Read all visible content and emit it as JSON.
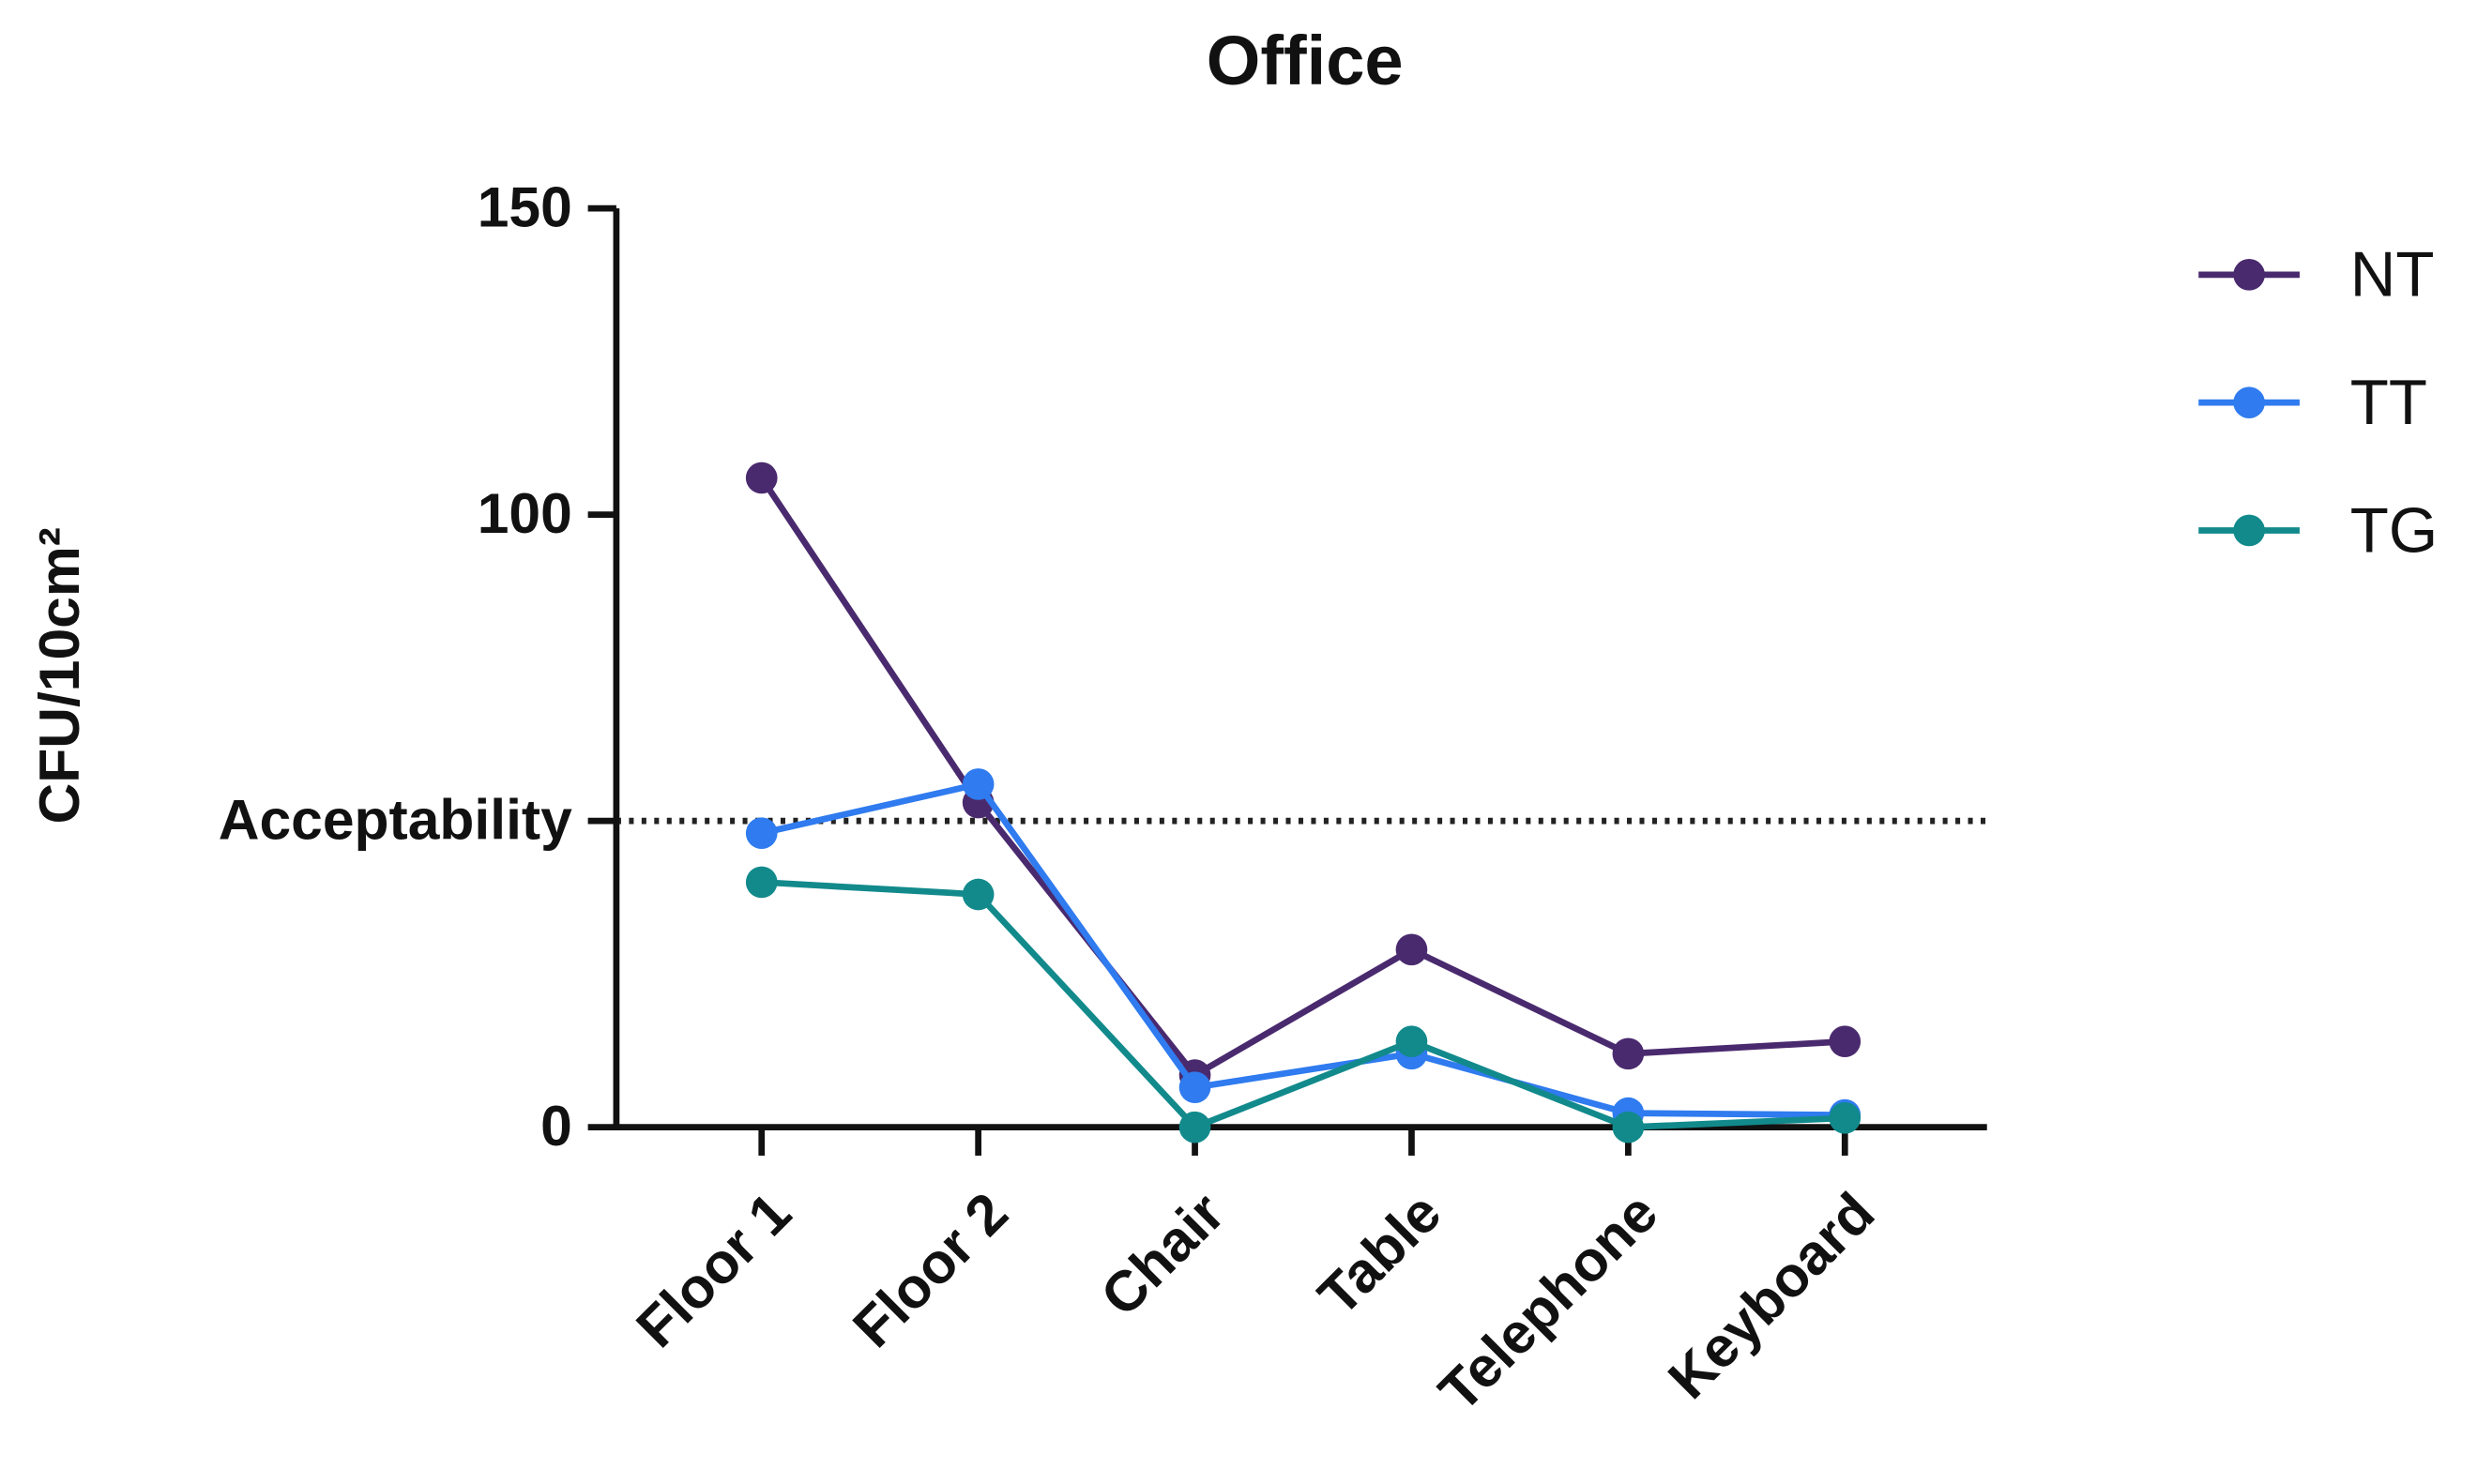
{
  "chart_data": {
    "type": "line",
    "title": "Office",
    "y_label": "CFU/10cm²",
    "categories": [
      "Floor 1",
      "Floor 2",
      "Chair",
      "Table",
      "Telephone",
      "Keyboard"
    ],
    "series": [
      {
        "name": "NT",
        "color": "#4a2a6e",
        "values": [
          106,
          53,
          8.5,
          29,
          12,
          14
        ]
      },
      {
        "name": "TT",
        "color": "#2f7bef",
        "values": [
          48,
          56,
          6.5,
          12,
          2.3,
          2
        ]
      },
      {
        "name": "TG",
        "color": "#128a8c",
        "values": [
          40,
          38,
          0,
          14,
          0,
          1.5
        ]
      }
    ],
    "ylim": [
      0,
      150
    ],
    "yticks": [
      0,
      {
        "value": 50,
        "label": "Acceptability"
      },
      100,
      150
    ],
    "reference_line": 50,
    "legend": "right"
  }
}
